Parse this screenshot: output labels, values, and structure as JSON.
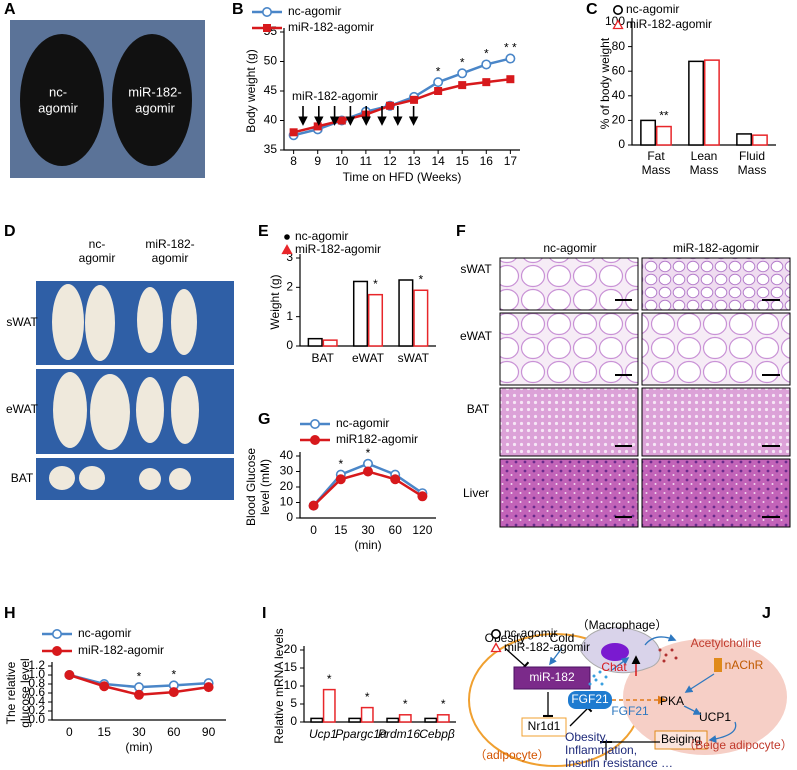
{
  "panel_labels": [
    "A",
    "B",
    "C",
    "D",
    "E",
    "F",
    "G",
    "H",
    "I",
    "J"
  ],
  "photo_a": {
    "labels": [
      "nc-",
      "agomir",
      "miR-182-",
      "agomir"
    ]
  },
  "photo_d": {
    "headers": [
      "nc-",
      "agomir",
      "miR-182-",
      "agomir"
    ],
    "rows": [
      "sWAT",
      "eWAT",
      "BAT"
    ]
  },
  "photo_f": {
    "headers": [
      "nc-agomir",
      "miR-182-agomir"
    ],
    "rows": [
      "sWAT",
      "eWAT",
      "BAT",
      "Liver"
    ]
  },
  "chart_data": [
    {
      "type": "line",
      "x": [
        8,
        9,
        10,
        11,
        12,
        13,
        14,
        15,
        16,
        17
      ],
      "xlim": [
        7.6,
        17.4
      ],
      "xticks": [
        8,
        9,
        10,
        11,
        12,
        13,
        14,
        15,
        16,
        17
      ],
      "ylim": [
        35,
        55
      ],
      "yticks": [
        35,
        40,
        45,
        50,
        55
      ],
      "y_label": "Body weight (g)",
      "x_label": "Time on HFD (Weeks)",
      "annotation": "miR-182-agomir",
      "series": [
        {
          "name": "nc-agomir",
          "color": "#4a86c8",
          "marker": "circle-open",
          "values": [
            37.5,
            38.5,
            40,
            41.5,
            42.5,
            44,
            46.5,
            48,
            49.5,
            50.5
          ]
        },
        {
          "name": "miR-182-agomir",
          "color": "#d7191c",
          "marker": "square-filled",
          "values": [
            38,
            39,
            40,
            41,
            42.5,
            43.5,
            45,
            46,
            46.5,
            47
          ],
          "stars": [
            null,
            null,
            null,
            null,
            null,
            null,
            "*",
            "*",
            "*",
            "* *"
          ]
        }
      ]
    },
    {
      "type": "bar",
      "categories": [
        [
          "Fat",
          "Mass"
        ],
        [
          "Lean",
          "Mass"
        ],
        [
          "Fluid",
          "Mass"
        ]
      ],
      "ylim": [
        0,
        100
      ],
      "yticks": [
        0,
        20,
        40,
        60,
        80,
        100
      ],
      "y_label": "% of body weight",
      "series": [
        {
          "name": "nc-agomir",
          "color": "#000000",
          "marker": "circle-open",
          "values": [
            20,
            68,
            9
          ]
        },
        {
          "name": "miR-182-agomir",
          "color": "#e8262a",
          "marker": "triangle-open",
          "values": [
            15,
            69,
            8
          ],
          "stars": [
            "**",
            null,
            null
          ]
        }
      ]
    },
    {
      "type": "bar",
      "categories": [
        "BAT",
        "eWAT",
        "sWAT"
      ],
      "ylim": [
        0,
        3
      ],
      "yticks": [
        0,
        1,
        2,
        3
      ],
      "y_label": "Weight (g)",
      "series": [
        {
          "name": "nc-agomir",
          "color": "#000000",
          "marker": "dot",
          "values": [
            0.25,
            2.2,
            2.25
          ]
        },
        {
          "name": "miR-182-agomir",
          "color": "#e8262a",
          "marker": "triangle-filled",
          "values": [
            0.2,
            1.75,
            1.9
          ],
          "stars": [
            null,
            "*",
            "*"
          ]
        }
      ]
    },
    {
      "type": "line",
      "categories": [
        "0",
        "15",
        "30",
        "60",
        "120"
      ],
      "ylim": [
        0,
        40
      ],
      "yticks": [
        0,
        10,
        20,
        30,
        40
      ],
      "y_label": [
        "Blood Glucose",
        "level (mM)"
      ],
      "x_label": "(min)",
      "series": [
        {
          "name": "nc-agomir",
          "color": "#4a86c8",
          "marker": "circle-open",
          "values": [
            8,
            28,
            35,
            28,
            16
          ]
        },
        {
          "name": "miR182-agomir",
          "color": "#d7191c",
          "marker": "circle-filled",
          "values": [
            8,
            25,
            30,
            25,
            14
          ],
          "stars": [
            null,
            "*",
            "*",
            null,
            null
          ]
        }
      ]
    },
    {
      "type": "line",
      "categories": [
        "0",
        "15",
        "30",
        "60",
        "90"
      ],
      "ylim": [
        0,
        1.2
      ],
      "yticks": [
        {
          "value": 0,
          "label": "0.0"
        },
        0.2,
        0.4,
        0.6,
        0.8,
        {
          "value": 1,
          "label": "1.0"
        },
        1.2
      ],
      "y_label": [
        "The relative",
        "glucose level"
      ],
      "x_label": "(min)",
      "series": [
        {
          "name": "nc-agomir",
          "color": "#4a86c8",
          "marker": "circle-open",
          "values": [
            1.0,
            0.8,
            0.73,
            0.77,
            0.82
          ]
        },
        {
          "name": "miR-182-agomir",
          "color": "#d7191c",
          "marker": "circle-filled",
          "values": [
            1.0,
            0.75,
            0.56,
            0.62,
            0.73
          ],
          "stars": [
            null,
            null,
            "*",
            "*",
            null
          ]
        }
      ]
    },
    {
      "type": "bar",
      "categories": [
        "Ucp1",
        "Ppargc1α",
        "Prdm16",
        "Cebpβ"
      ],
      "ylim": [
        0,
        20
      ],
      "yticks": [
        0,
        5,
        10,
        15,
        20
      ],
      "y_label": "Relative mRNA levels",
      "series": [
        {
          "name": "nc-agomir",
          "color": "#000000",
          "marker": "circle-open",
          "values": [
            1,
            1,
            1,
            1
          ]
        },
        {
          "name": "miR-182-agomir",
          "color": "#e8262a",
          "marker": "triangle-open",
          "values": [
            9,
            4,
            2,
            2
          ],
          "stars": [
            "*",
            "*",
            "*",
            "*"
          ]
        }
      ]
    }
  ],
  "diagram_j": {
    "obesity": "Obesity",
    "cold": "Cold",
    "mir": "miR-182",
    "macrophage": "（Macrophage）",
    "chat": "Chat",
    "acetylcholine": "Acetylcholine",
    "nachr": "nAChR",
    "pka": "PKA",
    "ucp1": "UCP1",
    "beiging": "Beiging",
    "fgf21_box": "FGF21",
    "fgf21_arrow": "FGF21",
    "nr1d1": "Nr1d1",
    "adipocyte": "（adipocyte）",
    "beige_adipocyte": "（Beige adipocyte）",
    "outcome": [
      "Obesity,",
      "Inflammation,",
      "Insulin resistance …"
    ]
  }
}
